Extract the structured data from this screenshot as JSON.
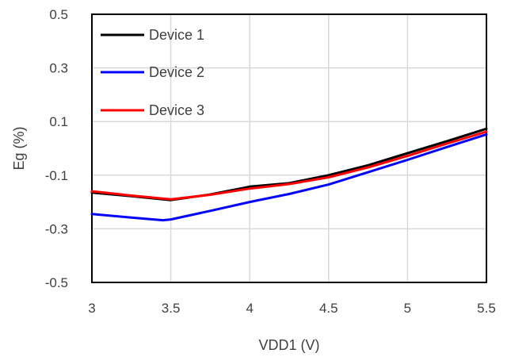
{
  "chart_data": {
    "type": "line",
    "title": "",
    "xlabel": "VDD1 (V)",
    "ylabel": "Eg (%)",
    "xlim": [
      3,
      5.5
    ],
    "ylim": [
      -0.5,
      0.5
    ],
    "x_ticks": [
      3,
      3.5,
      4,
      4.5,
      5,
      5.5
    ],
    "x_tick_labels": [
      "3",
      "3.5",
      "4",
      "4.5",
      "5",
      "5.5"
    ],
    "y_ticks": [
      0.5,
      0.3,
      0.1,
      -0.1,
      -0.3,
      -0.5
    ],
    "y_tick_labels": [
      "0.5",
      "0.3",
      "0.1",
      "-0.1",
      "-0.3",
      "-0.5"
    ],
    "grid": true,
    "legend_position": "top-left",
    "series": [
      {
        "name": "Device 1",
        "color": "#000000",
        "x": [
          3,
          3.25,
          3.5,
          3.75,
          4,
          4.25,
          4.5,
          4.75,
          5,
          5.25,
          5.5
        ],
        "y": [
          -0.165,
          -0.178,
          -0.193,
          -0.172,
          -0.143,
          -0.13,
          -0.1,
          -0.063,
          -0.018,
          0.027,
          0.073
        ]
      },
      {
        "name": "Device 2",
        "color": "#0000ff",
        "x": [
          3,
          3.25,
          3.45,
          3.5,
          3.75,
          4,
          4.25,
          4.5,
          4.75,
          5,
          5.25,
          5.5
        ],
        "y": [
          -0.245,
          -0.258,
          -0.268,
          -0.265,
          -0.233,
          -0.2,
          -0.17,
          -0.135,
          -0.089,
          -0.043,
          0.005,
          0.052
        ]
      },
      {
        "name": "Device 3",
        "color": "#ff0000",
        "x": [
          3,
          3.25,
          3.5,
          3.75,
          4,
          4.25,
          4.5,
          4.75,
          5,
          5.25,
          5.5
        ],
        "y": [
          -0.16,
          -0.176,
          -0.19,
          -0.173,
          -0.15,
          -0.133,
          -0.108,
          -0.071,
          -0.028,
          0.018,
          0.062
        ]
      }
    ]
  }
}
